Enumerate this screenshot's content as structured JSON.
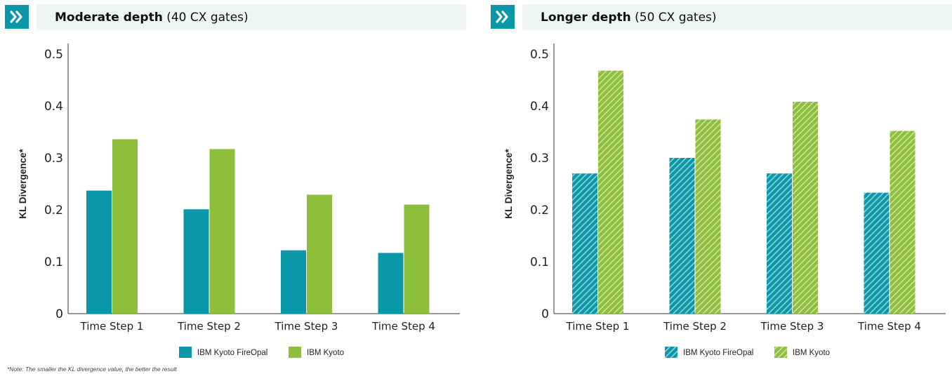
{
  "colors": {
    "fireopal": "#0a97a8",
    "kyoto": "#8dbf3a",
    "header_bg": "#eef5f3"
  },
  "header_icon": "double-chevron-right-icon",
  "panels": [
    {
      "title_bold": "Moderate depth",
      "title_rest": " (40 CX gates)"
    },
    {
      "title_bold": "Longer depth",
      "title_rest": " (50 CX gates)"
    }
  ],
  "chart_data": [
    {
      "type": "bar",
      "categories": [
        "Time Step 1",
        "Time Step 2",
        "Time Step 3",
        "Time Step 4"
      ],
      "series": [
        {
          "name": "IBM Kyoto FireOpal",
          "values": [
            0.237,
            0.201,
            0.122,
            0.117
          ]
        },
        {
          "name": "IBM Kyoto",
          "values": [
            0.336,
            0.317,
            0.229,
            0.21
          ]
        }
      ],
      "xlabel": "",
      "ylabel": "KL Divergence*",
      "ylim": [
        0,
        0.5
      ],
      "yticks": [
        "0",
        "0.1",
        "0.2",
        "0.3",
        "0.4",
        "0.5"
      ],
      "grid": false,
      "pattern": "solid",
      "legend_position": "bottom-center"
    },
    {
      "type": "bar",
      "categories": [
        "Time Step 1",
        "Time Step 2",
        "Time Step 3",
        "Time Step 4"
      ],
      "series": [
        {
          "name": "IBM Kyoto FireOpal",
          "values": [
            0.27,
            0.3,
            0.27,
            0.233
          ]
        },
        {
          "name": "IBM Kyoto",
          "values": [
            0.468,
            0.374,
            0.408,
            0.352
          ]
        }
      ],
      "xlabel": "",
      "ylabel": "KL Divergence*",
      "ylim": [
        0,
        0.5
      ],
      "yticks": [
        "0",
        "0.1",
        "0.2",
        "0.3",
        "0.4",
        "0.5"
      ],
      "grid": false,
      "pattern": "hatched",
      "legend_position": "bottom-center"
    }
  ],
  "note": "*Note: The smaller the KL divergence value, the better the result"
}
